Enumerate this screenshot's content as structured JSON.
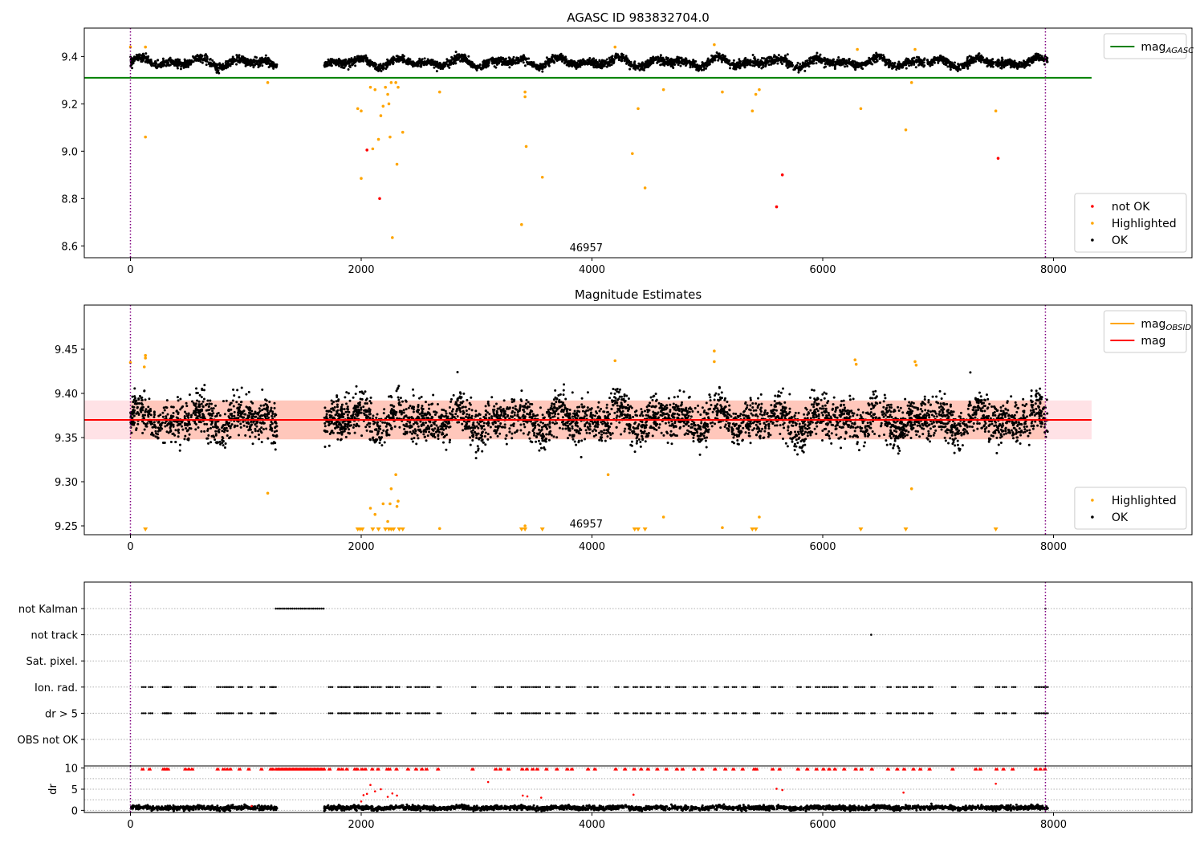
{
  "chart_data": [
    {
      "type": "scatter",
      "title": "AGASC ID 983832704.0",
      "xlabel": "",
      "ylabel": "",
      "xlim": [
        -400,
        9200
      ],
      "ylim": [
        8.55,
        9.52
      ],
      "xticks": [
        0,
        2000,
        4000,
        6000,
        8000
      ],
      "yticks": [
        8.6,
        8.8,
        9.0,
        9.2,
        9.4
      ],
      "ytick_labels": [
        "8.6",
        "8.8",
        "9.0",
        "9.2",
        "9.4"
      ],
      "grid": false,
      "obsid_label": "46957",
      "obsid_label_x": 3950,
      "vlines": [
        {
          "x": 0,
          "color": "#800080",
          "style": "dotted"
        },
        {
          "x": 7930,
          "color": "#800080",
          "style": "dotted"
        }
      ],
      "hlines": [
        {
          "name": "magAGASC",
          "y": 9.31,
          "x_range": [
            -400,
            8330
          ],
          "color": "#008000"
        }
      ],
      "ok_band": {
        "mean": 9.375,
        "amplitude": 0.022,
        "noise": 0.012
      },
      "ok_segments": [
        [
          0,
          1270
        ],
        [
          1680,
          7950
        ]
      ],
      "series": [
        {
          "name": "not OK",
          "color": "#ff0000",
          "points": [
            [
              2050,
              9.005
            ],
            [
              2160,
              8.8
            ],
            [
              5600,
              8.765
            ],
            [
              5650,
              8.9
            ],
            [
              7520,
              8.97
            ]
          ]
        },
        {
          "name": "Highlighted",
          "color": "#ffa500",
          "points": [
            [
              0,
              9.44
            ],
            [
              130,
              9.44
            ],
            [
              130,
              9.06
            ],
            [
              1190,
              9.29
            ],
            [
              1970,
              9.18
            ],
            [
              2000,
              9.17
            ],
            [
              2000,
              8.885
            ],
            [
              2080,
              9.27
            ],
            [
              2100,
              9.01
            ],
            [
              2120,
              9.26
            ],
            [
              2150,
              9.05
            ],
            [
              2170,
              9.15
            ],
            [
              2190,
              9.19
            ],
            [
              2210,
              9.27
            ],
            [
              2230,
              9.24
            ],
            [
              2240,
              9.2
            ],
            [
              2250,
              9.06
            ],
            [
              2260,
              9.29
            ],
            [
              2270,
              8.635
            ],
            [
              2300,
              9.29
            ],
            [
              2310,
              8.945
            ],
            [
              2320,
              9.27
            ],
            [
              2360,
              9.08
            ],
            [
              2680,
              9.25
            ],
            [
              3390,
              8.69
            ],
            [
              3420,
              9.25
            ],
            [
              3420,
              9.23
            ],
            [
              3430,
              9.02
            ],
            [
              3570,
              8.89
            ],
            [
              4200,
              9.44
            ],
            [
              4350,
              8.99
            ],
            [
              4400,
              9.18
            ],
            [
              4460,
              8.845
            ],
            [
              4620,
              9.26
            ],
            [
              5060,
              9.45
            ],
            [
              5130,
              9.25
            ],
            [
              5390,
              9.17
            ],
            [
              5420,
              9.24
            ],
            [
              5450,
              9.26
            ],
            [
              6300,
              9.43
            ],
            [
              6330,
              9.18
            ],
            [
              6720,
              9.09
            ],
            [
              6770,
              9.29
            ],
            [
              6800,
              9.43
            ],
            [
              7500,
              9.17
            ]
          ]
        },
        {
          "name": "OK",
          "color": "#000000"
        }
      ],
      "legends": [
        {
          "position": "top-right",
          "entries": [
            {
              "label": "mag",
              "sub": "AGASC",
              "color": "#008000",
              "kind": "line"
            }
          ]
        },
        {
          "position": "bottom-right",
          "entries": [
            {
              "label": "not OK",
              "color": "#ff0000",
              "kind": "dot"
            },
            {
              "label": "Highlighted",
              "color": "#ffa500",
              "kind": "dot"
            },
            {
              "label": "OK",
              "color": "#000000",
              "kind": "dot"
            }
          ]
        }
      ]
    },
    {
      "type": "scatter",
      "title": "Magnitude Estimates",
      "xlabel": "",
      "ylabel": "",
      "xlim": [
        -400,
        9200
      ],
      "ylim": [
        9.24,
        9.5
      ],
      "xticks": [
        0,
        2000,
        4000,
        6000,
        8000
      ],
      "yticks": [
        9.25,
        9.3,
        9.35,
        9.4,
        9.45
      ],
      "ytick_labels": [
        "9.25",
        "9.30",
        "9.35",
        "9.40",
        "9.45"
      ],
      "grid": false,
      "obsid_label": "46957",
      "obsid_label_x": 3950,
      "vlines": [
        {
          "x": 0,
          "color": "#800080",
          "style": "dotted"
        },
        {
          "x": 7930,
          "color": "#800080",
          "style": "dotted"
        }
      ],
      "hlines": [
        {
          "name": "mag",
          "y": 9.37,
          "x_range": [
            -400,
            8330
          ],
          "color": "#ff0000"
        }
      ],
      "bands": [
        {
          "y": [
            9.348,
            9.392
          ],
          "x_range": [
            -400,
            8330
          ],
          "color": "#ffb6c1",
          "opacity": 0.4
        },
        {
          "y": [
            9.348,
            9.392
          ],
          "x_range": [
            0,
            7930
          ],
          "color": "#ffa07a",
          "opacity": 0.4
        }
      ],
      "ok_band": {
        "mean": 9.37,
        "amplitude": 0.015,
        "noise": 0.016
      },
      "ok_segments": [
        [
          0,
          1270
        ],
        [
          1680,
          7950
        ]
      ],
      "series": [
        {
          "name": "Highlighted",
          "color": "#ffa500",
          "points": [
            [
              0,
              9.435
            ],
            [
              130,
              9.443
            ],
            [
              130,
              9.44
            ],
            [
              120,
              9.43
            ],
            [
              1190,
              9.287
            ],
            [
              2080,
              9.27
            ],
            [
              2120,
              9.263
            ],
            [
              2190,
              9.275
            ],
            [
              2230,
              9.255
            ],
            [
              2250,
              9.275
            ],
            [
              2260,
              9.292
            ],
            [
              2300,
              9.308
            ],
            [
              2310,
              9.272
            ],
            [
              2320,
              9.278
            ],
            [
              2680,
              9.247
            ],
            [
              3420,
              9.25
            ],
            [
              4140,
              9.308
            ],
            [
              4200,
              9.437
            ],
            [
              4620,
              9.26
            ],
            [
              5060,
              9.448
            ],
            [
              5060,
              9.436
            ],
            [
              5130,
              9.248
            ],
            [
              5450,
              9.26
            ],
            [
              6280,
              9.438
            ],
            [
              6290,
              9.433
            ],
            [
              6770,
              9.292
            ],
            [
              6800,
              9.436
            ],
            [
              6810,
              9.432
            ]
          ]
        },
        {
          "name": "below-range",
          "color": "#ffa500",
          "marker": "triangle",
          "x": [
            130,
            1970,
            1990,
            2010,
            2100,
            2150,
            2210,
            2240,
            2260,
            2280,
            2330,
            2360,
            3390,
            3420,
            3570,
            4370,
            4400,
            4460,
            5390,
            5420,
            6330,
            6720,
            7500
          ]
        },
        {
          "name": "OK",
          "color": "#000000"
        }
      ],
      "legends": [
        {
          "position": "top-right",
          "entries": [
            {
              "label": "mag",
              "sub": "OBSID",
              "color": "#ffa500",
              "kind": "line"
            },
            {
              "label": "mag",
              "color": "#ff0000",
              "kind": "line"
            }
          ]
        },
        {
          "position": "bottom-right",
          "entries": [
            {
              "label": "Highlighted",
              "color": "#ffa500",
              "kind": "dot"
            },
            {
              "label": "OK",
              "color": "#000000",
              "kind": "dot"
            }
          ]
        }
      ]
    },
    {
      "type": "scatter",
      "title": "",
      "xlabel": "",
      "ylabel": "",
      "xlim": [
        -400,
        9200
      ],
      "categories": [
        "not Kalman",
        "not track",
        "Sat. pixel.",
        "Ion. rad.",
        "dr > 5",
        "OBS not OK"
      ],
      "vlines": [
        {
          "x": 0,
          "color": "#800080",
          "style": "dotted"
        },
        {
          "x": 7930,
          "color": "#800080",
          "style": "dotted"
        }
      ],
      "flags": [
        {
          "category": "not Kalman",
          "ranges": [
            [
              1260,
              1690
            ]
          ],
          "points": [
            7930
          ]
        },
        {
          "category": "not track",
          "points": [
            6420
          ]
        },
        {
          "category": "Sat. pixel.",
          "points": []
        },
        {
          "category": "Ion. rad.",
          "clusters": [
            100,
            160,
            280,
            300,
            320,
            470,
            500,
            530,
            750,
            800,
            830,
            860,
            940,
            1020,
            1130,
            1210,
            1230,
            1720,
            1800,
            1830,
            1870,
            1940,
            1960,
            2000,
            2030,
            2090,
            2140,
            2220,
            2240,
            2300,
            2400,
            2470,
            2520,
            2560,
            2660,
            2960,
            3160,
            3200,
            3270,
            3390,
            3430,
            3480,
            3520,
            3600,
            3690,
            3780,
            3820,
            3960,
            4020,
            4200,
            4280,
            4360,
            4420,
            4480,
            4560,
            4640,
            4730,
            4780,
            4880,
            4950,
            5060,
            5150,
            5220,
            5300,
            5400,
            5420,
            5560,
            5620,
            5780,
            5860,
            5940,
            6000,
            6050,
            6100,
            6180,
            6280,
            6330,
            6420,
            6560,
            6640,
            6700,
            6780,
            6840,
            6920,
            7120,
            7320,
            7360,
            7500,
            7560,
            7640,
            7840,
            7880,
            7920
          ]
        },
        {
          "category": "dr > 5",
          "clusters": [
            100,
            160,
            280,
            300,
            320,
            470,
            500,
            530,
            750,
            800,
            830,
            860,
            940,
            1020,
            1130,
            1210,
            1230,
            1720,
            1800,
            1830,
            1870,
            1940,
            1960,
            2000,
            2030,
            2090,
            2140,
            2220,
            2240,
            2300,
            2400,
            2470,
            2520,
            2560,
            2660,
            2960,
            3160,
            3200,
            3270,
            3390,
            3430,
            3480,
            3520,
            3600,
            3690,
            3780,
            3820,
            3960,
            4020,
            4200,
            4280,
            4360,
            4420,
            4480,
            4560,
            4640,
            4730,
            4780,
            4880,
            4950,
            5060,
            5150,
            5220,
            5300,
            5400,
            5420,
            5560,
            5620,
            5780,
            5860,
            5940,
            6000,
            6050,
            6100,
            6180,
            6280,
            6330,
            6420,
            6560,
            6640,
            6700,
            6780,
            6840,
            6920,
            7120,
            7320,
            7360,
            7500,
            7560,
            7640,
            7840,
            7880,
            7920
          ]
        },
        {
          "category": "OBS not OK",
          "points": []
        }
      ]
    },
    {
      "type": "scatter",
      "title": "",
      "xlabel": "",
      "ylabel": "dr",
      "xlim": [
        -400,
        9200
      ],
      "ylim": [
        -0.5,
        10.5
      ],
      "xticks": [
        0,
        2000,
        4000,
        6000,
        8000
      ],
      "yticks": [
        0,
        5,
        10
      ],
      "ytick_labels": [
        "0",
        "5",
        "10"
      ],
      "grid": true,
      "vlines": [
        {
          "x": 0,
          "color": "#800080",
          "style": "dotted"
        },
        {
          "x": 7930,
          "color": "#800080",
          "style": "dotted"
        }
      ],
      "ok_segments": [
        [
          0,
          1270
        ],
        [
          1680,
          7950
        ]
      ],
      "ok_band": {
        "mean": 0.6,
        "amplitude": 0.2,
        "noise": 0.35
      },
      "capped_color": "#ff0000",
      "capped_ranges": [
        [
          1260,
          1690
        ]
      ],
      "series": [
        {
          "name": "dr-high",
          "color": "#ff0000",
          "points": [
            [
              2020,
              3.6
            ],
            [
              2050,
              3.9
            ],
            [
              2080,
              6.0
            ],
            [
              2120,
              4.5
            ],
            [
              2170,
              5.0
            ],
            [
              2230,
              3.2
            ],
            [
              2270,
              4.0
            ],
            [
              2310,
              3.5
            ],
            [
              3100,
              6.7
            ],
            [
              3400,
              3.5
            ],
            [
              3440,
              3.3
            ],
            [
              3560,
              3.0
            ],
            [
              4360,
              3.7
            ],
            [
              5600,
              5.1
            ],
            [
              5650,
              4.8
            ],
            [
              6700,
              4.2
            ],
            [
              7500,
              6.3
            ],
            [
              1050,
              1.0
            ],
            [
              2000,
              2.1
            ]
          ]
        }
      ]
    }
  ]
}
